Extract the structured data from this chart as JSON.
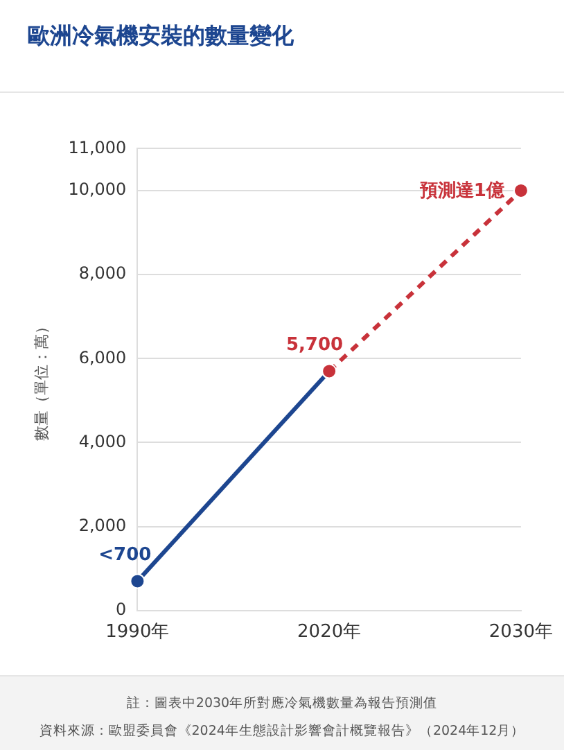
{
  "chart_data": {
    "type": "line",
    "title": "歐洲冷氣機安裝的數量變化",
    "ylabel": "數量（單位：萬）",
    "categories": [
      "1990年",
      "2020年",
      "2030年"
    ],
    "ylim": [
      0,
      11000
    ],
    "yticks": [
      0,
      {
        "value": 2000,
        "label": "2,000"
      },
      {
        "value": 4000,
        "label": "4,000"
      },
      {
        "value": 6000,
        "label": "6,000"
      },
      {
        "value": 8000,
        "label": "8,000"
      },
      {
        "value": 10000,
        "label": "10,000"
      },
      {
        "value": 11000,
        "label": "11,000"
      }
    ],
    "grid": "y",
    "marker": "circle",
    "series": [
      {
        "color": "#c8323a",
        "x": [
          "2020年",
          "2030年"
        ],
        "values": [
          5700,
          10000
        ],
        "line_style": "dashed",
        "value_labels": [
          "5,700",
          "預測達1億"
        ]
      },
      {
        "color": "#1d4690",
        "x": [
          "1990年",
          "2020年"
        ],
        "values": [
          700,
          5700
        ],
        "line_style": "solid",
        "value_labels": [
          "<700",
          null
        ]
      }
    ],
    "annotations": [
      "註：圖表中2030年所對應冷氣機數量為報告預測值",
      "資料來源：歐盟委員會《2024年生態設計影響會計概覽報告》（2024年12月）"
    ]
  }
}
